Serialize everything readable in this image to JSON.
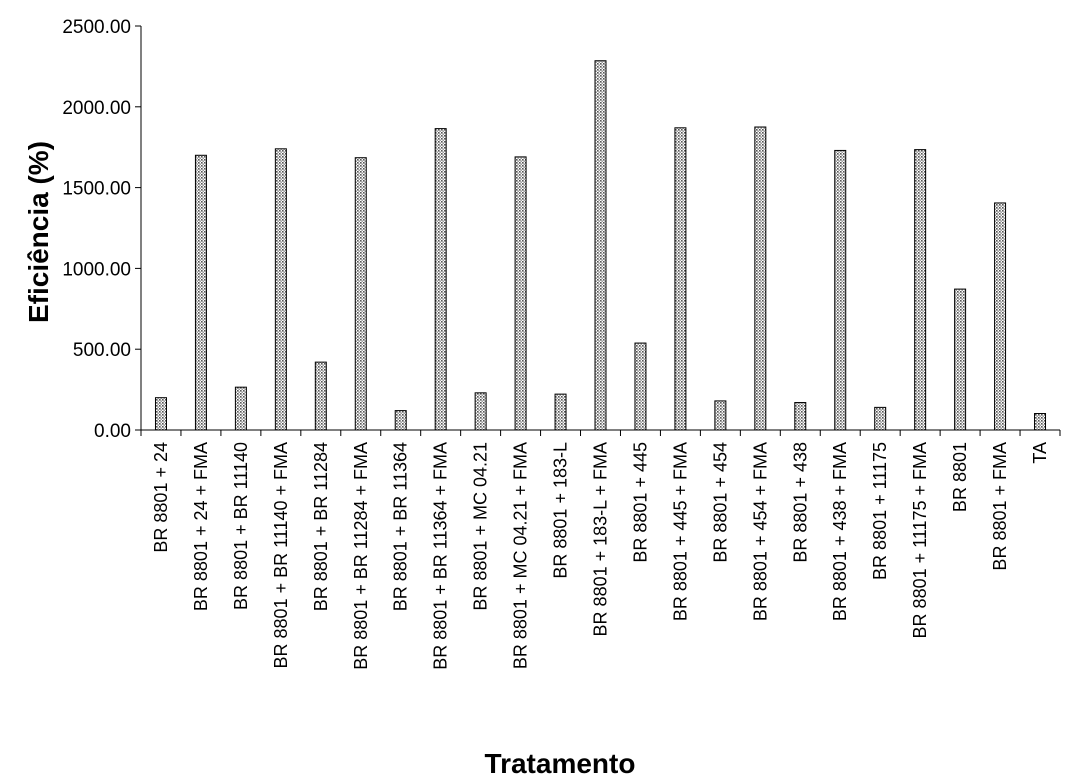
{
  "chart_data": {
    "type": "bar",
    "title": "",
    "xlabel": "Tratamento",
    "ylabel": "Eficiência (%)",
    "ylim": [
      0,
      2500
    ],
    "yticks": [
      "0.00",
      "500.00",
      "1000.00",
      "1500.00",
      "2000.00",
      "2500.00"
    ],
    "grid": false,
    "legend": "none",
    "bar_fill_pattern": "dotted",
    "bar_color": "#666666",
    "categories": [
      "BR 8801 + 24",
      "BR 8801 + 24 + FMA",
      "BR 8801 + BR 11140",
      "BR 8801 + BR 11140 + FMA",
      "BR 8801 + BR 11284",
      "BR 8801 + BR 11284 + FMA",
      "BR 8801 + BR 11364",
      "BR 8801 + BR 11364 + FMA",
      "BR 8801 + MC 04.21",
      "BR 8801 + MC 04.21 + FMA",
      "BR 8801 + 183-L",
      "BR 8801 + 183-L + FMA",
      "BR 8801 + 445",
      "BR 8801 + 445 + FMA",
      "BR 8801 + 454",
      "BR 8801 + 454 + FMA",
      "BR 8801 + 438",
      "BR 8801 + 438 + FMA",
      "BR 8801 + 11175",
      "BR 8801 + 11175 + FMA",
      "BR 8801",
      "BR 8801 + FMA",
      "TA"
    ],
    "values": [
      200,
      1700,
      265,
      1740,
      420,
      1685,
      120,
      1865,
      230,
      1690,
      222,
      2285,
      538,
      1870,
      180,
      1875,
      170,
      1730,
      140,
      1735,
      872,
      1405,
      102
    ]
  }
}
